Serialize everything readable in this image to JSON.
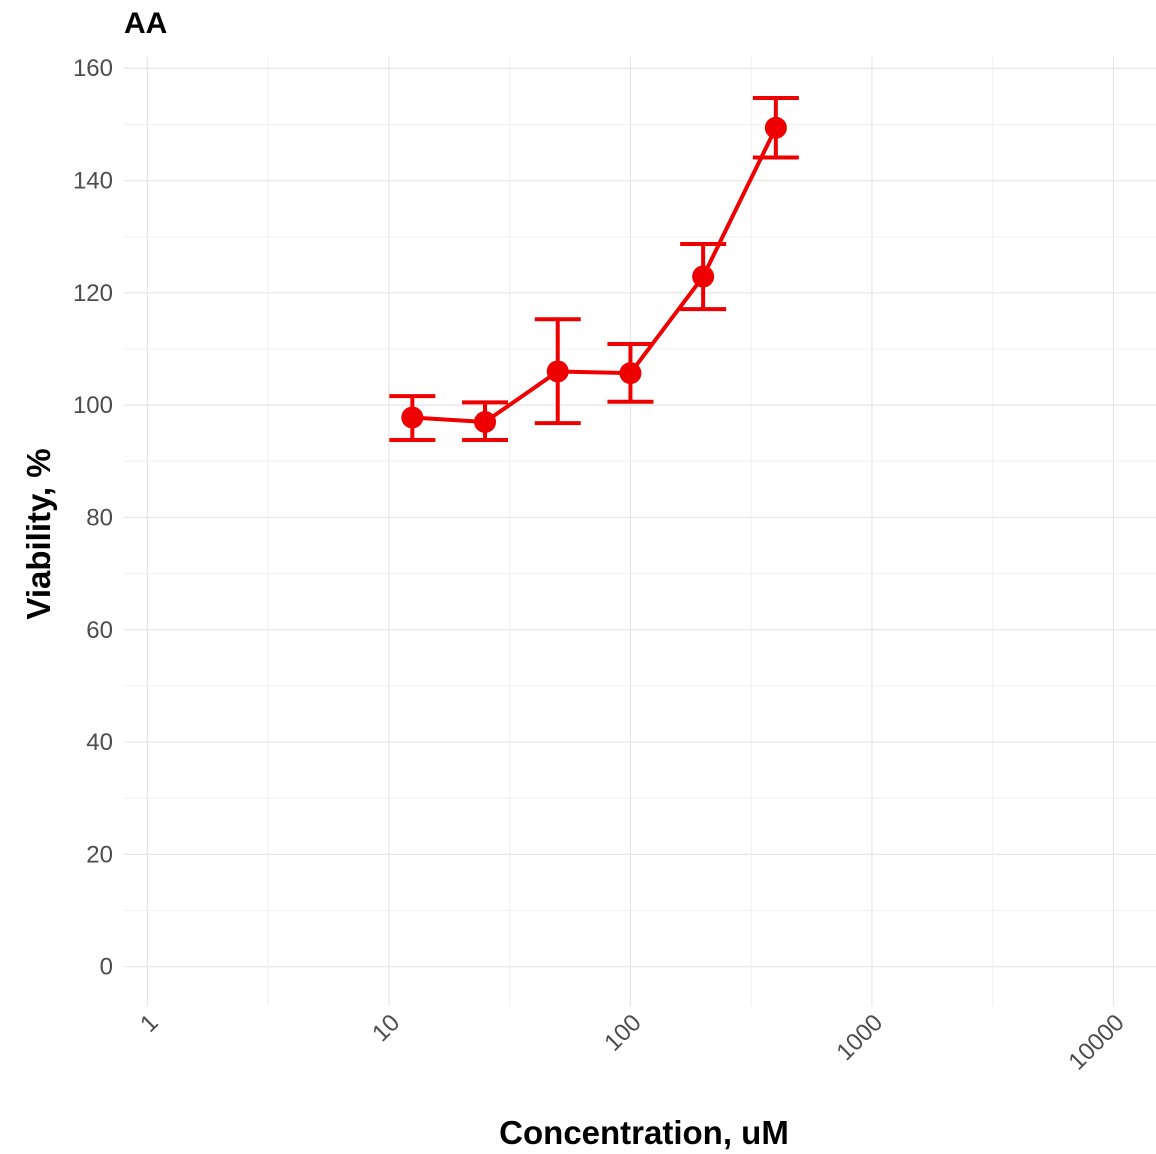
{
  "chart_data": {
    "type": "line",
    "title": "AA",
    "xlabel": "Concentration, uM",
    "ylabel": "Viability, %",
    "x_scale": "log10",
    "xlim": [
      0.8,
      15000
    ],
    "ylim": [
      -7,
      162
    ],
    "x_ticks": [
      1,
      10,
      100,
      1000,
      10000
    ],
    "x_tick_labels": [
      "1",
      "10",
      "100",
      "1000",
      "10000"
    ],
    "y_ticks": [
      0,
      20,
      40,
      60,
      80,
      100,
      120,
      140,
      160
    ],
    "y_tick_labels": [
      "0",
      "20",
      "40",
      "60",
      "80",
      "100",
      "120",
      "140",
      "160"
    ],
    "grid": true,
    "series": [
      {
        "color": "#ee0000",
        "points": [
          {
            "x": 12.5,
            "y": 97.8,
            "ymin": 93.8,
            "ymax": 101.6
          },
          {
            "x": 25,
            "y": 97.0,
            "ymin": 93.8,
            "ymax": 100.5
          },
          {
            "x": 50,
            "y": 106.0,
            "ymin": 96.8,
            "ymax": 115.3
          },
          {
            "x": 100,
            "y": 105.7,
            "ymin": 100.6,
            "ymax": 110.9
          },
          {
            "x": 200,
            "y": 122.9,
            "ymin": 117.1,
            "ymax": 128.7
          },
          {
            "x": 400,
            "y": 149.4,
            "ymin": 144.1,
            "ymax": 154.7
          }
        ]
      }
    ]
  }
}
